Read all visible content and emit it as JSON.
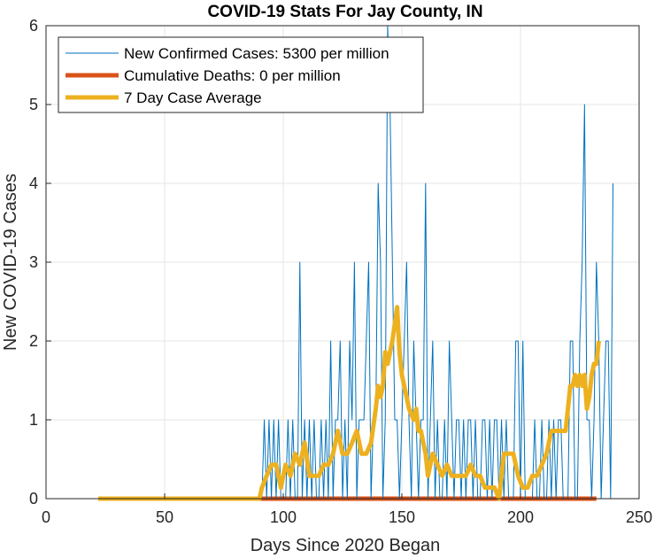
{
  "chart_data": {
    "type": "line",
    "title": "COVID-19 Stats For Jay County, IN",
    "xlabel": "Days Since 2020 Began",
    "ylabel": "New COVID-19 Cases",
    "xlim": [
      0,
      250
    ],
    "ylim": [
      0,
      6
    ],
    "xticks": [
      0,
      50,
      100,
      150,
      200,
      250
    ],
    "yticks": [
      0,
      1,
      2,
      3,
      4,
      5,
      6
    ],
    "grid": true,
    "legend_position": "top-left",
    "series": [
      {
        "name": "New Confirmed Cases: 5300 per million",
        "color": "#0072BD",
        "style": "thin",
        "x_start": 22,
        "values": [
          0,
          0,
          0,
          0,
          0,
          0,
          0,
          0,
          0,
          0,
          0,
          0,
          0,
          0,
          0,
          0,
          0,
          0,
          0,
          0,
          0,
          0,
          0,
          0,
          0,
          0,
          0,
          0,
          0,
          0,
          0,
          0,
          0,
          0,
          0,
          0,
          0,
          0,
          0,
          0,
          0,
          0,
          0,
          0,
          0,
          0,
          0,
          0,
          0,
          0,
          0,
          0,
          0,
          0,
          0,
          0,
          0,
          0,
          0,
          0,
          0,
          0,
          0,
          0,
          0,
          0,
          0,
          0,
          0,
          0,
          1,
          0,
          1,
          0,
          1,
          0,
          1,
          0,
          0,
          0,
          1,
          0,
          1,
          0,
          0,
          3,
          0,
          1,
          0,
          1,
          0,
          1,
          0,
          0,
          1,
          0,
          1,
          0,
          2,
          0,
          1,
          1,
          2,
          0,
          1,
          0,
          2,
          1,
          3,
          0,
          1,
          1,
          1,
          2,
          3,
          0,
          1,
          1,
          4,
          3,
          0,
          1,
          6,
          5,
          3,
          1,
          1,
          0,
          1,
          2,
          3,
          1,
          0,
          2,
          1,
          0,
          1,
          1,
          4,
          0,
          1,
          2,
          0,
          1,
          0,
          0,
          1,
          0,
          2,
          1,
          0,
          1,
          1,
          0,
          1,
          0,
          1,
          1,
          0,
          1,
          0,
          0,
          1,
          1,
          0,
          1,
          0,
          1,
          1,
          0,
          1,
          0,
          1,
          0,
          0,
          0,
          2,
          2,
          0,
          2,
          0,
          0,
          0,
          0,
          1,
          0,
          0,
          1,
          0,
          0,
          1,
          0,
          1,
          0,
          1,
          1,
          0,
          0,
          0,
          2,
          2,
          0,
          0,
          2,
          3,
          5,
          1,
          1,
          0,
          1,
          3,
          2,
          0,
          1,
          2,
          2,
          0,
          4
        ]
      },
      {
        "name": "Cumulative Deaths: 0 per million",
        "color": "#D95319",
        "style": "thick",
        "x_start": 22,
        "values": [
          0,
          0,
          0,
          0,
          0,
          0,
          0,
          0,
          0,
          0,
          0,
          0,
          0,
          0,
          0,
          0,
          0,
          0,
          0,
          0,
          0,
          0,
          0,
          0,
          0,
          0,
          0,
          0,
          0,
          0,
          0,
          0,
          0,
          0,
          0,
          0,
          0,
          0,
          0,
          0,
          0,
          0,
          0,
          0,
          0,
          0,
          0,
          0,
          0,
          0,
          0,
          0,
          0,
          0,
          0,
          0,
          0,
          0,
          0,
          0,
          0,
          0,
          0,
          0,
          0,
          0,
          0,
          0,
          0,
          0,
          0,
          0,
          0,
          0,
          0,
          0,
          0,
          0,
          0,
          0,
          0,
          0,
          0,
          0,
          0,
          0,
          0,
          0,
          0,
          0,
          0,
          0,
          0,
          0,
          0,
          0,
          0,
          0,
          0,
          0,
          0,
          0,
          0,
          0,
          0,
          0,
          0,
          0,
          0,
          0,
          0,
          0,
          0,
          0,
          0,
          0,
          0,
          0,
          0,
          0,
          0,
          0,
          0,
          0,
          0,
          0,
          0,
          0,
          0,
          0,
          0,
          0,
          0,
          0,
          0,
          0,
          0,
          0,
          0,
          0,
          0,
          0,
          0,
          0,
          0,
          0,
          0,
          0,
          0,
          0,
          0,
          0,
          0,
          0,
          0,
          0,
          0,
          0,
          0,
          0,
          0,
          0,
          0,
          0,
          0,
          0,
          0,
          0,
          0,
          0,
          0,
          0,
          0,
          0,
          0,
          0,
          0,
          0,
          0,
          0,
          0,
          0,
          0,
          0,
          0,
          0,
          0,
          0,
          0,
          0,
          0,
          0,
          0,
          0,
          0,
          0,
          0,
          0,
          0,
          0,
          0,
          0,
          0,
          0,
          0,
          0,
          0,
          0,
          0,
          0,
          0
        ]
      },
      {
        "name": "7 Day Case Average",
        "color": "#EDB120",
        "style": "thick",
        "x": [
          22,
          90,
          91,
          93,
          95,
          97,
          99,
          100,
          101,
          103,
          105,
          107,
          109,
          111,
          113,
          115,
          117,
          119,
          121,
          123,
          125,
          127,
          129,
          131,
          133,
          135,
          137,
          139,
          140,
          141,
          142,
          143,
          144,
          146,
          148,
          149,
          150,
          151,
          152,
          153,
          155,
          156,
          157,
          158,
          160,
          161,
          163,
          165,
          167,
          169,
          171,
          173,
          175,
          177,
          179,
          181,
          183,
          185,
          187,
          189,
          191,
          192,
          193,
          195,
          197,
          199,
          201,
          203,
          205,
          207,
          209,
          211,
          213,
          215,
          217,
          219,
          220,
          221,
          222,
          223,
          224,
          225,
          226,
          227,
          228,
          229,
          230,
          231,
          232,
          233
        ],
        "values": [
          0,
          0,
          0.14,
          0.29,
          0.43,
          0.43,
          0.14,
          0.29,
          0.43,
          0.29,
          0.57,
          0.43,
          0.71,
          0.29,
          0.29,
          0.29,
          0.43,
          0.43,
          0.57,
          0.86,
          0.57,
          0.57,
          0.71,
          0.86,
          0.57,
          0.57,
          0.71,
          1.14,
          1.43,
          1.29,
          1.43,
          1.86,
          1.71,
          2.0,
          2.43,
          1.86,
          1.57,
          1.43,
          1.29,
          1.14,
          1.0,
          1.14,
          0.86,
          0.86,
          0.57,
          0.29,
          0.57,
          0.43,
          0.29,
          0.43,
          0.29,
          0.29,
          0.29,
          0.29,
          0.43,
          0.29,
          0.29,
          0.14,
          0.14,
          0.14,
          0.0,
          0.29,
          0.57,
          0.57,
          0.57,
          0.29,
          0.14,
          0.14,
          0.29,
          0.29,
          0.43,
          0.57,
          0.86,
          0.86,
          0.86,
          0.86,
          1.14,
          1.43,
          1.43,
          1.57,
          1.43,
          1.57,
          1.43,
          1.57,
          1.14,
          1.29,
          1.57,
          1.71,
          1.71,
          2.0
        ]
      }
    ]
  }
}
